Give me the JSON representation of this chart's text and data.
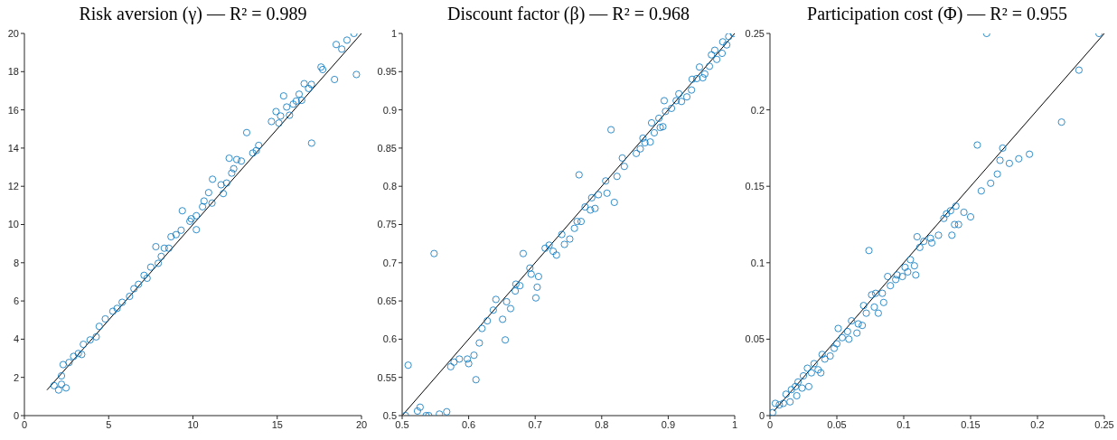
{
  "chart_data": [
    {
      "type": "scatter",
      "title": "Risk aversion (γ) — R² = 0.989",
      "line_style": "solid",
      "xlim": [
        0,
        20
      ],
      "ylim": [
        0,
        20
      ],
      "xticks": [
        0,
        5,
        10,
        15,
        20
      ],
      "yticks": [
        0,
        2,
        4,
        6,
        8,
        10,
        12,
        14,
        16,
        18,
        20
      ],
      "series": [
        {
          "type": "scatter",
          "marker": "circle",
          "color": "#0072bd",
          "x": [
            2.2,
            1.76,
            2.03,
            2.2,
            2.47,
            2.3,
            2.65,
            2.92,
            3.2,
            3.4,
            3.5,
            3.9,
            4.26,
            4.44,
            4.8,
            5.25,
            5.5,
            5.8,
            6.24,
            6.5,
            6.77,
            7.1,
            7.28,
            7.5,
            7.94,
            7.8,
            8.12,
            8.3,
            8.57,
            8.7,
            9.0,
            9.3,
            9.37,
            9.82,
            9.9,
            10.2,
            10.2,
            10.57,
            10.66,
            10.93,
            11.16,
            11.13,
            11.67,
            11.8,
            12.0,
            12.15,
            12.3,
            12.42,
            12.6,
            12.87,
            13.19,
            13.55,
            13.76,
            13.9,
            14.66,
            14.93,
            15.1,
            15.2,
            15.38,
            15.56,
            15.73,
            15.95,
            16.13,
            16.3,
            16.45,
            16.6,
            16.86,
            17.03,
            17.04,
            17.6,
            17.7,
            18.4,
            18.5,
            18.83,
            19.14,
            19.55,
            19.7
          ],
          "values": [
            2.08,
            1.57,
            1.34,
            1.64,
            1.45,
            2.67,
            2.78,
            3.1,
            3.25,
            3.2,
            3.73,
            3.96,
            4.12,
            4.67,
            5.06,
            5.46,
            5.61,
            5.93,
            6.24,
            6.64,
            6.87,
            7.34,
            7.19,
            7.77,
            7.97,
            8.84,
            8.33,
            8.76,
            8.76,
            9.36,
            9.47,
            9.7,
            10.72,
            10.17,
            10.3,
            10.46,
            9.73,
            10.93,
            11.23,
            11.67,
            12.37,
            11.12,
            12.08,
            11.62,
            12.17,
            13.47,
            12.69,
            12.92,
            13.4,
            13.32,
            14.81,
            13.74,
            13.87,
            14.14,
            15.39,
            15.91,
            15.31,
            15.68,
            16.73,
            16.15,
            15.72,
            16.3,
            16.46,
            16.82,
            16.5,
            17.37,
            17.12,
            17.33,
            14.26,
            18.24,
            18.11,
            17.59,
            19.42,
            19.18,
            19.65,
            20.0,
            17.85
          ]
        },
        {
          "type": "line",
          "color": "#000000",
          "x": [
            1.34,
            20
          ],
          "values": [
            1.34,
            20
          ]
        }
      ]
    },
    {
      "type": "scatter",
      "title": "Discount factor (β) — R² = 0.968",
      "line_style": "solid",
      "xlim": [
        0.5,
        1
      ],
      "ylim": [
        0.5,
        1
      ],
      "xticks": [
        0.5,
        0.6,
        0.7,
        0.8,
        0.9,
        1
      ],
      "yticks": [
        0.5,
        0.55,
        0.6,
        0.65,
        0.7,
        0.75,
        0.8,
        0.85,
        0.9,
        0.95,
        1
      ],
      "series": [
        {
          "type": "scatter",
          "marker": "circle",
          "color": "#0072bd",
          "x": [
            0.505,
            0.509,
            0.523,
            0.527,
            0.536,
            0.54,
            0.548,
            0.556,
            0.567,
            0.573,
            0.578,
            0.586,
            0.598,
            0.6,
            0.608,
            0.611,
            0.616,
            0.62,
            0.628,
            0.637,
            0.641,
            0.651,
            0.655,
            0.657,
            0.663,
            0.67,
            0.671,
            0.677,
            0.682,
            0.692,
            0.694,
            0.701,
            0.703,
            0.705,
            0.715,
            0.721,
            0.727,
            0.732,
            0.74,
            0.744,
            0.752,
            0.759,
            0.763,
            0.766,
            0.769,
            0.775,
            0.783,
            0.785,
            0.79,
            0.795,
            0.806,
            0.808,
            0.814,
            0.819,
            0.823,
            0.831,
            0.834,
            0.852,
            0.858,
            0.862,
            0.865,
            0.873,
            0.875,
            0.879,
            0.886,
            0.888,
            0.892,
            0.894,
            0.896,
            0.905,
            0.912,
            0.916,
            0.92,
            0.928,
            0.935,
            0.936,
            0.943,
            0.947,
            0.952,
            0.955,
            0.962,
            0.965,
            0.97,
            0.973,
            0.981,
            0.982,
            0.988,
            0.991,
            0.998
          ],
          "values": [
            0.5,
            0.566,
            0.506,
            0.511,
            0.5,
            0.5,
            0.712,
            0.502,
            0.505,
            0.564,
            0.57,
            0.574,
            0.574,
            0.568,
            0.579,
            0.547,
            0.595,
            0.614,
            0.624,
            0.638,
            0.652,
            0.626,
            0.599,
            0.649,
            0.64,
            0.663,
            0.672,
            0.67,
            0.712,
            0.693,
            0.685,
            0.654,
            0.668,
            0.682,
            0.719,
            0.723,
            0.715,
            0.71,
            0.737,
            0.724,
            0.731,
            0.745,
            0.754,
            0.815,
            0.754,
            0.773,
            0.769,
            0.785,
            0.771,
            0.789,
            0.807,
            0.791,
            0.874,
            0.779,
            0.813,
            0.837,
            0.826,
            0.843,
            0.849,
            0.863,
            0.857,
            0.858,
            0.883,
            0.87,
            0.889,
            0.877,
            0.878,
            0.912,
            0.898,
            0.902,
            0.912,
            0.921,
            0.911,
            0.917,
            0.926,
            0.94,
            0.941,
            0.956,
            0.942,
            0.947,
            0.957,
            0.972,
            0.978,
            0.966,
            0.974,
            0.989,
            0.985,
            0.996,
            1.0
          ]
        },
        {
          "type": "line",
          "color": "#000000",
          "x": [
            0.5,
            1
          ],
          "values": [
            0.5,
            1
          ]
        }
      ]
    },
    {
      "type": "scatter",
      "title": "Participation cost (Φ) — R² = 0.955",
      "line_style": "solid",
      "xlim": [
        0,
        0.25
      ],
      "ylim": [
        0,
        0.25
      ],
      "xticks": [
        0,
        0.05,
        0.1,
        0.15,
        0.2,
        0.25
      ],
      "yticks": [
        0,
        0.05,
        0.1,
        0.15,
        0.2,
        0.25
      ],
      "series": [
        {
          "type": "scatter",
          "marker": "circle",
          "color": "#0072bd",
          "x": [
            0.002,
            0.004,
            0.007,
            0.01,
            0.012,
            0.015,
            0.016,
            0.019,
            0.02,
            0.021,
            0.024,
            0.025,
            0.029,
            0.028,
            0.031,
            0.033,
            0.036,
            0.038,
            0.039,
            0.041,
            0.045,
            0.048,
            0.05,
            0.051,
            0.054,
            0.058,
            0.059,
            0.061,
            0.065,
            0.066,
            0.069,
            0.07,
            0.072,
            0.074,
            0.076,
            0.078,
            0.079,
            0.081,
            0.084,
            0.085,
            0.088,
            0.09,
            0.094,
            0.095,
            0.099,
            0.101,
            0.103,
            0.105,
            0.108,
            0.109,
            0.11,
            0.112,
            0.115,
            0.12,
            0.121,
            0.126,
            0.13,
            0.132,
            0.135,
            0.136,
            0.138,
            0.139,
            0.141,
            0.145,
            0.15,
            0.155,
            0.158,
            0.162,
            0.165,
            0.17,
            0.172,
            0.174,
            0.179,
            0.186,
            0.194,
            0.218,
            0.231,
            0.246
          ],
          "values": [
            0.002,
            0.008,
            0.007,
            0.008,
            0.014,
            0.009,
            0.017,
            0.019,
            0.013,
            0.022,
            0.018,
            0.026,
            0.019,
            0.031,
            0.028,
            0.034,
            0.03,
            0.028,
            0.04,
            0.037,
            0.039,
            0.044,
            0.047,
            0.057,
            0.051,
            0.055,
            0.05,
            0.062,
            0.054,
            0.06,
            0.059,
            0.072,
            0.067,
            0.108,
            0.079,
            0.071,
            0.08,
            0.067,
            0.08,
            0.074,
            0.091,
            0.085,
            0.089,
            0.092,
            0.091,
            0.097,
            0.094,
            0.102,
            0.098,
            0.092,
            0.117,
            0.11,
            0.114,
            0.116,
            0.113,
            0.118,
            0.129,
            0.132,
            0.134,
            0.118,
            0.125,
            0.137,
            0.125,
            0.133,
            0.13,
            0.177,
            0.147,
            0.25,
            0.152,
            0.158,
            0.167,
            0.175,
            0.165,
            0.168,
            0.171,
            0.192,
            0.226,
            0.25
          ]
        },
        {
          "type": "line",
          "color": "#000000",
          "x": [
            0.003,
            0.25
          ],
          "values": [
            0.003,
            0.25
          ]
        }
      ]
    }
  ]
}
